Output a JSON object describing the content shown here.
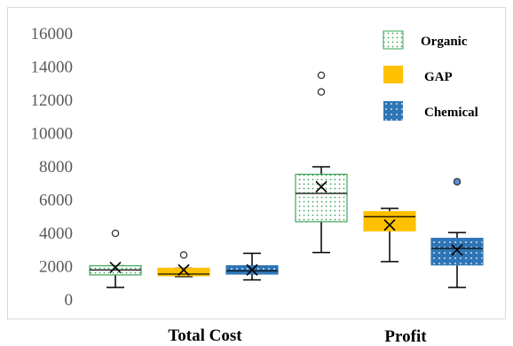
{
  "colors": {
    "organic_fill": "#ffffff",
    "organic_dots": "#3aa655",
    "gap_fill": "#ffc000",
    "chemical_fill": "#2e75b6",
    "chemical_dots": "#ffffff",
    "axis_text": "#595959",
    "whisker": "#000000",
    "outlier_fill": "#ffffff",
    "chemical_outlier_fill": "#5b8fd6"
  },
  "chart_data": {
    "type": "boxplot",
    "title": "",
    "xlabel": "",
    "ylabel": "",
    "ylim": [
      0,
      16000
    ],
    "yticks": [
      0,
      2000,
      4000,
      6000,
      8000,
      10000,
      12000,
      14000,
      16000
    ],
    "grid": false,
    "legend_position": "top-right",
    "categories": [
      "Total Cost",
      "Profit"
    ],
    "series": [
      {
        "name": "Organic",
        "pattern": "dotted-green",
        "boxes": [
          {
            "category": "Total Cost",
            "min": 750,
            "q1": 1500,
            "median": 1800,
            "q3": 2050,
            "max": 2050,
            "mean": 1950,
            "outliers": [
              4000
            ]
          },
          {
            "category": "Profit",
            "min": 2850,
            "q1": 4700,
            "median": 6400,
            "q3": 7550,
            "max": 8000,
            "mean": 6800,
            "outliers": [
              12500,
              13500
            ]
          }
        ]
      },
      {
        "name": "GAP",
        "pattern": "solid-orange",
        "boxes": [
          {
            "category": "Total Cost",
            "min": 1400,
            "q1": 1450,
            "median": 1550,
            "q3": 1900,
            "max": 1900,
            "mean": 1800,
            "outliers": [
              2700
            ]
          },
          {
            "category": "Profit",
            "min": 2300,
            "q1": 4150,
            "median": 5000,
            "q3": 5300,
            "max": 5500,
            "mean": 4500,
            "outliers": []
          }
        ]
      },
      {
        "name": "Chemical",
        "pattern": "dotted-blue",
        "boxes": [
          {
            "category": "Total Cost",
            "min": 1200,
            "q1": 1550,
            "median": 1750,
            "q3": 2050,
            "max": 2800,
            "mean": 1800,
            "outliers": []
          },
          {
            "category": "Profit",
            "min": 750,
            "q1": 2100,
            "median": 3100,
            "q3": 3700,
            "max": 4050,
            "mean": 3000,
            "outliers": [
              7100
            ]
          }
        ]
      }
    ]
  }
}
